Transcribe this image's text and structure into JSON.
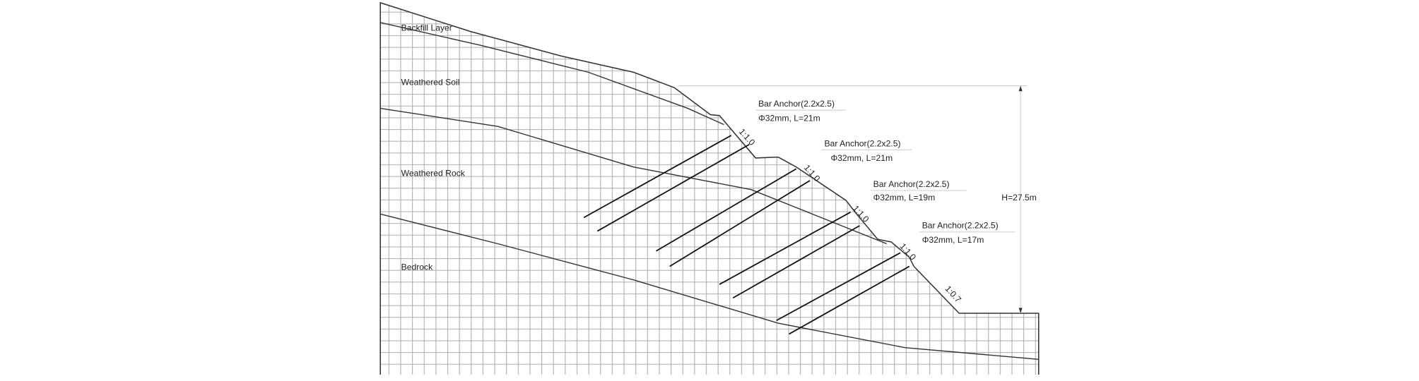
{
  "layers": [
    "Backfill Layer",
    "Weathered Soil",
    "Weathered Rock",
    "Bedrock"
  ],
  "anchors": [
    {
      "title": "Bar Anchor(2.2x2.5)",
      "spec": "Φ32mm, L=21m"
    },
    {
      "title": "Bar Anchor(2.2x2.5)",
      "spec": "Φ32mm, L=21m"
    },
    {
      "title": "Bar Anchor(2.2x2.5)",
      "spec": "Φ32mm, L=19m"
    },
    {
      "title": "Bar Anchor(2.2x2.5)",
      "spec": "Φ32mm, L=17m"
    }
  ],
  "slopes": [
    "1:1.0",
    "1:1.0",
    "1:1.0",
    "1:1.0",
    "1:0.7"
  ],
  "height": "H=27.5m"
}
